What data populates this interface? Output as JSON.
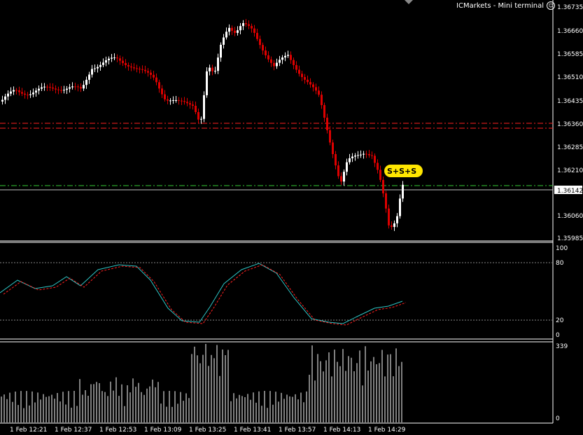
{
  "window": {
    "title": "ICMarkets - Mini terminal",
    "icon": "smiley-icon"
  },
  "colors": {
    "background": "#000000",
    "candle_up": "#ffffff",
    "candle_down": "#dd0000",
    "resistance_line": "#ff2020",
    "support_line": "#33cc33",
    "current_price_line": "#c0c0c0",
    "stoch_main": "#2ec4c4",
    "stoch_signal": "#ff2020",
    "volume": "#ffffff",
    "signal_badge": "#ffe600"
  },
  "price_axis": {
    "labels": [
      "1.36735",
      "1.36660",
      "1.36585",
      "1.36510",
      "1.36435",
      "1.36360",
      "1.36285",
      "1.36210",
      "1.36060",
      "1.35985"
    ],
    "current_price": "1.36142"
  },
  "signal": {
    "text": "S+S+S"
  },
  "stochastic": {
    "levels": [
      "100",
      "80",
      "20",
      "0"
    ]
  },
  "volume_panel": {
    "max_label": "339",
    "min_label": "0"
  },
  "time_axis": [
    "1 Feb 12:21",
    "1 Feb 12:37",
    "1 Feb 12:53",
    "1 Feb 13:09",
    "1 Feb 13:25",
    "1 Feb 13:41",
    "1 Feb 13:57",
    "1 Feb 14:13",
    "1 Feb 14:29"
  ]
}
